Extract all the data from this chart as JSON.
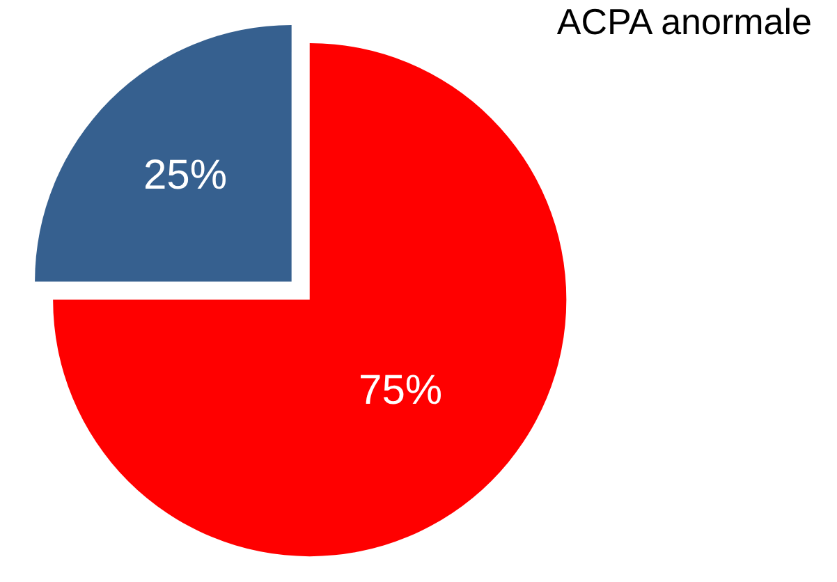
{
  "chart_data": {
    "type": "pie",
    "title": "ACPA anormale",
    "categories": [
      null,
      null
    ],
    "values": [
      75,
      25
    ],
    "colors": [
      "#ff0000",
      "#36608f"
    ],
    "value_labels": [
      "75%",
      "25%"
    ],
    "legend": false
  }
}
